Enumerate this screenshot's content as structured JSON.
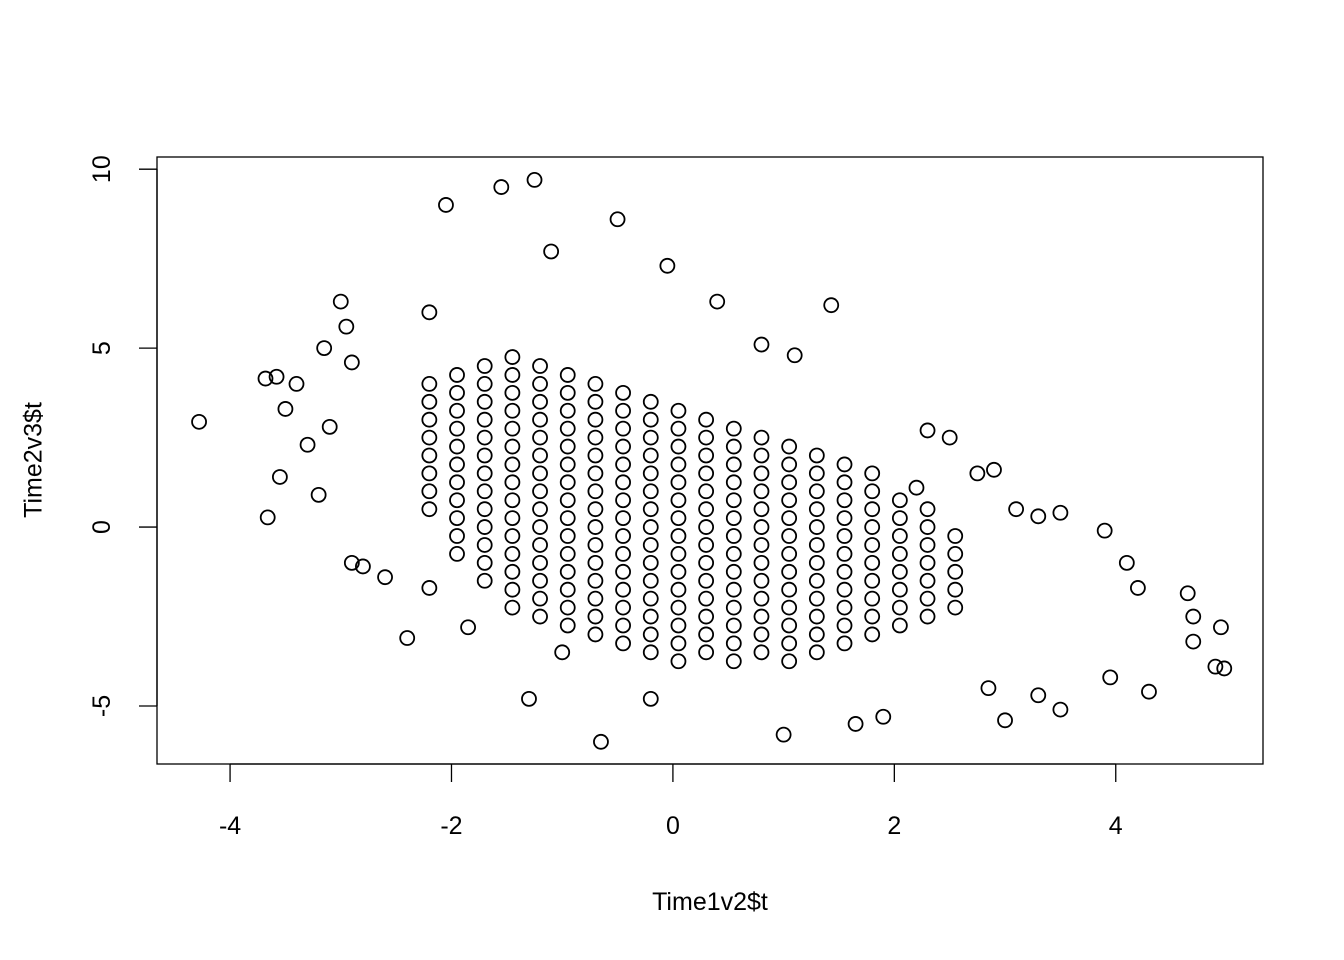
{
  "chart_data": {
    "type": "scatter",
    "x_label": "Time1v2$t",
    "y_label": "Time2v3$t",
    "xlim": [
      -4.66,
      5.33
    ],
    "ylim": [
      -6.62,
      10.34
    ],
    "xticks": [
      -4,
      -2,
      0,
      2,
      4
    ],
    "yticks": [
      -5,
      0,
      5,
      10
    ],
    "color": "#000000",
    "x": [
      -2.2,
      -2.2,
      -2.2,
      -2.2,
      -2.2,
      -2.2,
      -2.2,
      -2.2,
      -1.95,
      -1.95,
      -1.95,
      -1.95,
      -1.95,
      -1.95,
      -1.95,
      -1.95,
      -1.95,
      -1.95,
      -1.95,
      -1.7,
      -1.7,
      -1.7,
      -1.7,
      -1.7,
      -1.7,
      -1.7,
      -1.7,
      -1.7,
      -1.7,
      -1.7,
      -1.7,
      -1.7,
      -1.45,
      -1.45,
      -1.45,
      -1.45,
      -1.45,
      -1.45,
      -1.45,
      -1.45,
      -1.45,
      -1.45,
      -1.45,
      -1.45,
      -1.45,
      -1.45,
      -1.45,
      -1.2,
      -1.2,
      -1.2,
      -1.2,
      -1.2,
      -1.2,
      -1.2,
      -1.2,
      -1.2,
      -1.2,
      -1.2,
      -1.2,
      -1.2,
      -1.2,
      -1.2,
      -0.95,
      -0.95,
      -0.95,
      -0.95,
      -0.95,
      -0.95,
      -0.95,
      -0.95,
      -0.95,
      -0.95,
      -0.95,
      -0.95,
      -0.95,
      -0.95,
      -0.95,
      -0.7,
      -0.7,
      -0.7,
      -0.7,
      -0.7,
      -0.7,
      -0.7,
      -0.7,
      -0.7,
      -0.7,
      -0.7,
      -0.7,
      -0.7,
      -0.7,
      -0.7,
      -0.45,
      -0.45,
      -0.45,
      -0.45,
      -0.45,
      -0.45,
      -0.45,
      -0.45,
      -0.45,
      -0.45,
      -0.45,
      -0.45,
      -0.45,
      -0.45,
      -0.45,
      -0.2,
      -0.2,
      -0.2,
      -0.2,
      -0.2,
      -0.2,
      -0.2,
      -0.2,
      -0.2,
      -0.2,
      -0.2,
      -0.2,
      -0.2,
      -0.2,
      -0.2,
      0.05,
      0.05,
      0.05,
      0.05,
      0.05,
      0.05,
      0.05,
      0.05,
      0.05,
      0.05,
      0.05,
      0.05,
      0.05,
      0.05,
      0.05,
      0.3,
      0.3,
      0.3,
      0.3,
      0.3,
      0.3,
      0.3,
      0.3,
      0.3,
      0.3,
      0.3,
      0.3,
      0.3,
      0.3,
      0.55,
      0.55,
      0.55,
      0.55,
      0.55,
      0.55,
      0.55,
      0.55,
      0.55,
      0.55,
      0.55,
      0.55,
      0.55,
      0.55,
      0.8,
      0.8,
      0.8,
      0.8,
      0.8,
      0.8,
      0.8,
      0.8,
      0.8,
      0.8,
      0.8,
      0.8,
      0.8,
      1.05,
      1.05,
      1.05,
      1.05,
      1.05,
      1.05,
      1.05,
      1.05,
      1.05,
      1.05,
      1.05,
      1.05,
      1.05,
      1.3,
      1.3,
      1.3,
      1.3,
      1.3,
      1.3,
      1.3,
      1.3,
      1.3,
      1.3,
      1.3,
      1.3,
      1.55,
      1.55,
      1.55,
      1.55,
      1.55,
      1.55,
      1.55,
      1.55,
      1.55,
      1.55,
      1.55,
      1.8,
      1.8,
      1.8,
      1.8,
      1.8,
      1.8,
      1.8,
      1.8,
      1.8,
      1.8,
      2.05,
      2.05,
      2.05,
      2.05,
      2.05,
      2.05,
      2.05,
      2.05,
      2.3,
      2.3,
      2.3,
      2.3,
      2.3,
      2.3,
      2.3,
      2.55,
      2.55,
      2.55,
      2.55,
      2.55,
      -4.28,
      -3.66,
      -3.68,
      -3.58,
      -3.5,
      -3.4,
      -3.3,
      -3.2,
      -3.15,
      -3.0,
      -2.95,
      -2.9,
      -2.8,
      -2.6,
      -2.4,
      -2.2,
      -2.05,
      -1.55,
      -1.25,
      -0.5,
      -1.1,
      -0.05,
      0.4,
      1.43,
      0.8,
      1.1,
      2.3,
      2.5,
      2.75,
      2.9,
      3.1,
      3.5,
      3.9,
      4.1,
      4.2,
      4.65,
      4.7,
      4.95,
      4.9,
      4.98,
      4.7,
      4.3,
      3.5,
      3.0,
      2.85,
      1.9,
      1.65,
      1.0,
      -0.65,
      -1.3,
      -0.2,
      -2.2,
      -1.85,
      -1.0,
      3.3,
      3.95,
      3.3,
      2.2,
      -3.55,
      -3.1,
      -2.9
    ],
    "values": [
      0.5,
      1,
      1.5,
      2,
      2.5,
      3,
      3.5,
      4,
      -0.75,
      -0.25,
      0.25,
      0.75,
      1.25,
      1.75,
      2.25,
      2.75,
      3.25,
      3.75,
      4.25,
      -1.5,
      -1,
      -0.5,
      0,
      0.5,
      1,
      1.5,
      2,
      2.5,
      3,
      3.5,
      4,
      4.5,
      -2.25,
      -1.75,
      -1.25,
      -0.75,
      -0.25,
      0.25,
      0.75,
      1.25,
      1.75,
      2.25,
      2.75,
      3.25,
      3.75,
      4.25,
      4.75,
      -2.5,
      -2,
      -1.5,
      -1,
      -0.5,
      0,
      0.5,
      1,
      1.5,
      2,
      2.5,
      3,
      3.5,
      4,
      4.5,
      -2.75,
      -2.25,
      -1.75,
      -1.25,
      -0.75,
      -0.25,
      0.25,
      0.75,
      1.25,
      1.75,
      2.25,
      2.75,
      3.25,
      3.75,
      4.25,
      -3,
      -2.5,
      -2,
      -1.5,
      -1,
      -0.5,
      0,
      0.5,
      1,
      1.5,
      2,
      2.5,
      3,
      3.5,
      4,
      -3.25,
      -2.75,
      -2.25,
      -1.75,
      -1.25,
      -0.75,
      -0.25,
      0.25,
      0.75,
      1.25,
      1.75,
      2.25,
      2.75,
      3.25,
      3.75,
      -3.5,
      -3,
      -2.5,
      -2,
      -1.5,
      -1,
      -0.5,
      0,
      0.5,
      1,
      1.5,
      2,
      2.5,
      3,
      3.5,
      -3.75,
      -3.25,
      -2.75,
      -2.25,
      -1.75,
      -1.25,
      -0.75,
      -0.25,
      0.25,
      0.75,
      1.25,
      1.75,
      2.25,
      2.75,
      3.25,
      -3.5,
      -3,
      -2.5,
      -2,
      -1.5,
      -1,
      -0.5,
      0,
      0.5,
      1,
      1.5,
      2,
      2.5,
      3,
      -3.75,
      -3.25,
      -2.75,
      -2.25,
      -1.75,
      -1.25,
      -0.75,
      -0.25,
      0.25,
      0.75,
      1.25,
      1.75,
      2.25,
      2.75,
      -3.5,
      -3,
      -2.5,
      -2,
      -1.5,
      -1,
      -0.5,
      0,
      0.5,
      1,
      1.5,
      2,
      2.5,
      -3.75,
      -3.25,
      -2.75,
      -2.25,
      -1.75,
      -1.25,
      -0.75,
      -0.25,
      0.25,
      0.75,
      1.25,
      1.75,
      2.25,
      -3.5,
      -3,
      -2.5,
      -2,
      -1.5,
      -1,
      -0.5,
      0,
      0.5,
      1,
      1.5,
      2,
      -3.25,
      -2.75,
      -2.25,
      -1.75,
      -1.25,
      -0.75,
      -0.25,
      0.25,
      0.75,
      1.25,
      1.75,
      -3,
      -2.5,
      -2,
      -1.5,
      -1,
      -0.5,
      0,
      0.5,
      1,
      1.5,
      -2.75,
      -2.25,
      -1.75,
      -1.25,
      -0.75,
      -0.25,
      0.25,
      0.75,
      -2.5,
      -2,
      -1.5,
      -1,
      -0.5,
      0,
      0.5,
      -2.25,
      -1.75,
      -1.25,
      -0.75,
      -0.25,
      2.94,
      0.27,
      4.15,
      4.2,
      3.3,
      4.0,
      2.3,
      0.9,
      5.0,
      6.3,
      5.6,
      -1.0,
      -1.1,
      -1.4,
      -3.1,
      6.0,
      9.0,
      9.5,
      9.7,
      8.6,
      7.7,
      7.3,
      6.3,
      6.2,
      5.1,
      4.8,
      2.7,
      2.5,
      1.5,
      1.6,
      0.5,
      0.4,
      -0.1,
      -1.0,
      -1.7,
      -1.85,
      -2.5,
      -2.8,
      -3.9,
      -3.95,
      -3.2,
      -4.6,
      -5.1,
      -5.4,
      -4.5,
      -5.3,
      -5.5,
      -5.8,
      -6.0,
      -4.8,
      -4.8,
      -1.7,
      -2.8,
      -3.5,
      -4.7,
      -4.2,
      0.3,
      1.1,
      1.4,
      2.8,
      4.6
    ]
  }
}
